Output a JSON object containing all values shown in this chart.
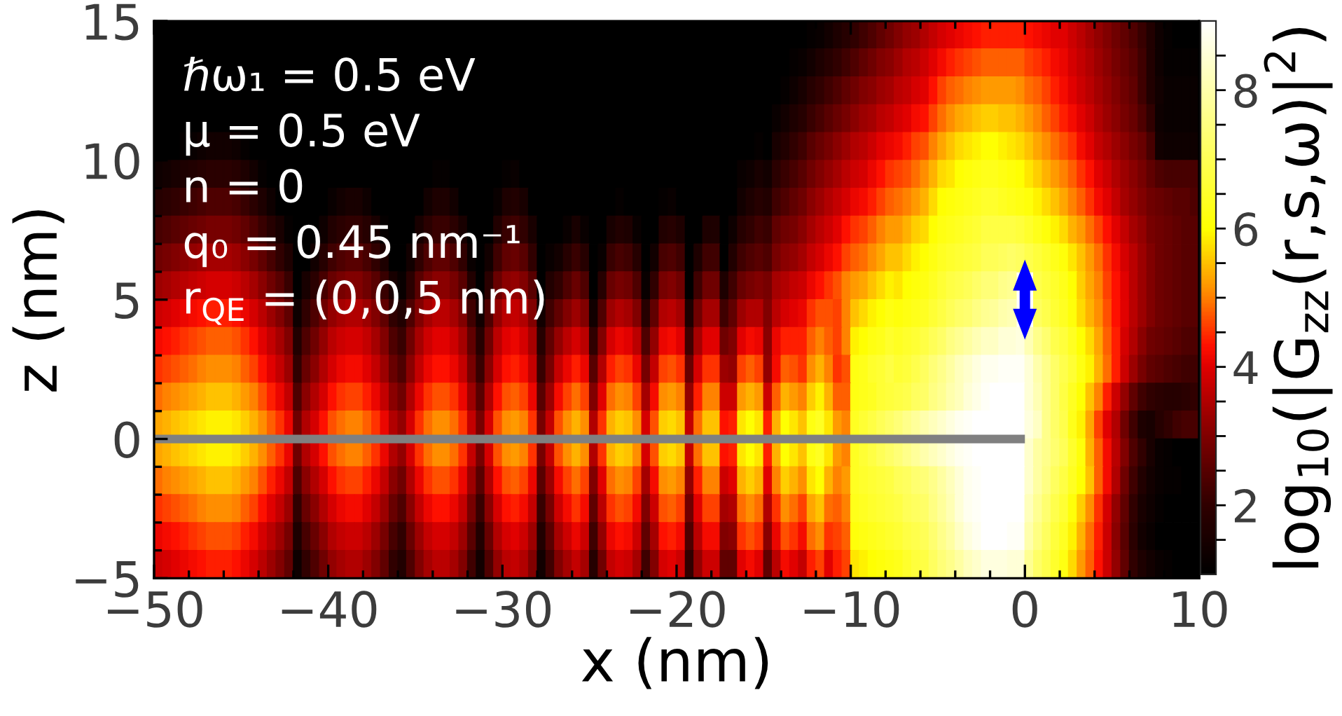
{
  "chart_data": {
    "type": "heatmap",
    "xlabel": "x (nm)",
    "ylabel": "z (nm)",
    "clabel": "log$_{10}$(|G$_{zz}$(r,s,ω)|$^{2}$)",
    "annotations": [
      "ℏω₁ = 0.5 eV",
      "μ = 0.5 eV",
      "n = 0",
      "q₀ = 0.45 nm⁻¹",
      "r$_{QE}$ = (0,0,5 nm)"
    ],
    "xlim": [
      -50,
      10
    ],
    "ylim": [
      -5,
      15
    ],
    "xticks": [
      {
        "value": -50,
        "label": "−50"
      },
      {
        "value": -48,
        "label": null
      },
      {
        "value": -46,
        "label": null
      },
      {
        "value": -44,
        "label": null
      },
      {
        "value": -42,
        "label": null
      },
      {
        "value": -40,
        "label": "−40"
      },
      {
        "value": -38,
        "label": null
      },
      {
        "value": -36,
        "label": null
      },
      {
        "value": -34,
        "label": null
      },
      {
        "value": -32,
        "label": null
      },
      {
        "value": -30,
        "label": "−30"
      },
      {
        "value": -28,
        "label": null
      },
      {
        "value": -26,
        "label": null
      },
      {
        "value": -24,
        "label": null
      },
      {
        "value": -22,
        "label": null
      },
      {
        "value": -20,
        "label": "−20"
      },
      {
        "value": -18,
        "label": null
      },
      {
        "value": -16,
        "label": null
      },
      {
        "value": -14,
        "label": null
      },
      {
        "value": -12,
        "label": null
      },
      {
        "value": -10,
        "label": "−10"
      },
      {
        "value": -8,
        "label": null
      },
      {
        "value": -6,
        "label": null
      },
      {
        "value": -4,
        "label": null
      },
      {
        "value": -2,
        "label": null
      },
      0,
      {
        "value": 2,
        "label": null
      },
      {
        "value": 4,
        "label": null
      },
      {
        "value": 6,
        "label": null
      },
      {
        "value": 8,
        "label": null
      },
      10
    ],
    "yticks": [
      {
        "value": -5,
        "label": "−5"
      },
      {
        "value": -4,
        "label": null
      },
      {
        "value": -3,
        "label": null
      },
      {
        "value": -2,
        "label": null
      },
      {
        "value": -1,
        "label": null
      },
      0,
      {
        "value": 1,
        "label": null
      },
      {
        "value": 2,
        "label": null
      },
      {
        "value": 3,
        "label": null
      },
      {
        "value": 4,
        "label": null
      },
      5,
      {
        "value": 6,
        "label": null
      },
      {
        "value": 7,
        "label": null
      },
      {
        "value": 8,
        "label": null
      },
      {
        "value": 9,
        "label": null
      },
      10,
      {
        "value": 11,
        "label": null
      },
      {
        "value": 12,
        "label": null
      },
      {
        "value": 13,
        "label": null
      },
      {
        "value": 14,
        "label": null
      },
      15
    ],
    "clim": [
      1,
      9
    ],
    "cticks": [
      {
        "value": 1.5,
        "label": null
      },
      2,
      {
        "value": 2.5,
        "label": null
      },
      {
        "value": 3,
        "label": null
      },
      {
        "value": 3.5,
        "label": null
      },
      4,
      {
        "value": 4.5,
        "label": null
      },
      {
        "value": 5,
        "label": null
      },
      {
        "value": 5.5,
        "label": null
      },
      6,
      {
        "value": 6.5,
        "label": null
      },
      {
        "value": 7,
        "label": null
      },
      {
        "value": 7.5,
        "label": null
      },
      8,
      {
        "value": 8.5,
        "label": null
      }
    ],
    "series": [
      {
        "type": "line",
        "x": [
          -50,
          0
        ],
        "values": [
          0,
          0
        ],
        "color": "#808080"
      }
    ],
    "cells": [
      [
        1,
        1,
        1,
        1,
        1,
        1,
        1,
        1,
        1,
        1,
        1,
        1,
        1,
        1,
        1,
        1,
        1,
        1,
        1,
        1,
        1,
        1,
        1,
        1,
        1,
        1,
        1,
        1,
        1,
        1,
        1,
        1,
        1,
        1,
        1,
        1,
        1,
        1,
        1,
        1,
        1,
        1,
        1,
        1,
        1,
        1,
        1,
        1,
        1,
        1,
        1,
        1,
        1,
        1,
        1,
        1,
        1,
        1,
        1,
        1,
        1,
        1,
        1,
        1,
        1,
        1,
        1,
        1,
        1,
        1,
        1,
        1,
        1,
        1,
        1,
        1.1,
        1.2,
        1.4,
        1.6,
        1.8,
        2.0,
        2.2,
        2.4,
        2.6,
        2.8,
        3.0,
        3.2,
        3.3,
        3.5,
        3.7,
        3.9,
        4.0,
        4.1,
        4.2,
        4.3,
        4.4,
        4.4,
        4.4,
        4.4,
        4.4,
        4.3,
        4.2,
        4.1,
        4.0,
        4.0,
        3.8,
        3.6,
        3.4,
        3.2,
        3.0,
        2.8,
        2.6,
        2.4,
        2.1,
        1.7,
        1.3,
        1.1,
        1,
        1,
        1
      ],
      [
        1,
        1,
        1,
        1,
        1,
        1,
        1,
        1,
        1,
        1,
        1,
        1,
        1,
        1,
        1,
        1,
        1,
        1,
        1,
        1,
        1,
        1,
        1,
        1,
        1,
        1,
        1,
        1,
        1,
        1,
        1,
        1,
        1,
        1,
        1,
        1,
        1,
        1,
        1,
        1,
        1,
        1,
        1,
        1,
        1,
        1,
        1,
        1,
        1,
        1,
        1,
        1,
        1,
        1,
        1,
        1,
        1,
        1,
        1,
        1,
        1,
        1,
        1,
        1,
        1,
        1,
        1,
        1,
        1,
        1,
        1,
        1,
        1,
        1.1,
        1.2,
        1.4,
        1.6,
        1.8,
        2.0,
        2.2,
        2.4,
        2.6,
        2.8,
        3.0,
        3.1,
        3.3,
        3.5,
        3.6,
        3.8,
        4.0,
        4.2,
        4.4,
        4.5,
        4.6,
        4.7,
        4.8,
        4.8,
        4.8,
        4.8,
        4.8,
        4.6,
        4.5,
        4.4,
        4.2,
        4.1,
        3.9,
        3.7,
        3.5,
        3.3,
        3.1,
        2.9,
        2.7,
        2.5,
        2.2,
        1.7,
        1.3,
        1.1,
        1.1,
        1.1,
        1.1
      ],
      [
        1,
        1,
        1,
        1,
        1,
        1,
        1,
        1,
        1,
        1,
        1,
        1,
        1,
        1,
        1,
        1,
        1,
        1,
        1,
        1,
        1,
        1,
        1,
        1,
        1,
        1,
        1,
        1,
        1,
        1,
        1,
        1,
        1,
        1,
        1,
        1,
        1,
        1,
        1,
        1,
        1,
        1,
        1,
        1,
        1,
        1,
        1,
        1,
        1,
        1,
        1,
        1,
        1,
        1,
        1,
        1,
        1,
        1,
        1,
        1,
        1,
        1,
        1,
        1,
        1,
        1,
        1,
        1,
        1,
        1,
        1,
        1,
        1.1,
        1.3,
        1.5,
        1.8,
        2.0,
        2.2,
        2.4,
        2.6,
        2.8,
        3.0,
        3.1,
        3.3,
        3.4,
        3.6,
        3.7,
        3.9,
        4.0,
        4.3,
        4.6,
        4.8,
        4.9,
        5.0,
        5.1,
        5.2,
        5.2,
        5.2,
        5.2,
        5.1,
        4.9,
        4.8,
        4.6,
        4.4,
        4.2,
        4.0,
        3.8,
        3.6,
        3.4,
        3.2,
        3.0,
        2.8,
        2.6,
        2.2,
        1.7,
        1.4,
        1.2,
        1.2,
        1.2,
        1.2
      ],
      [
        1,
        1,
        1,
        1,
        1,
        1,
        1,
        1,
        1,
        1,
        1,
        1,
        1,
        1,
        1,
        1,
        1,
        1,
        1,
        1,
        1,
        1,
        1,
        1,
        1,
        1,
        1,
        1,
        1,
        1,
        1,
        1,
        1,
        1,
        1,
        1,
        1,
        1,
        1,
        1,
        1,
        1,
        1,
        1,
        1,
        1,
        1,
        1,
        1,
        1,
        1,
        1,
        1,
        1,
        1,
        1,
        1,
        1,
        1,
        1,
        1,
        1,
        1,
        1,
        1,
        1,
        1,
        1,
        1,
        1,
        1,
        1.2,
        1.4,
        1.6,
        1.8,
        2.1,
        2.3,
        2.5,
        2.7,
        2.9,
        3.1,
        3.3,
        3.4,
        3.6,
        3.7,
        3.9,
        4.0,
        4.2,
        4.3,
        4.6,
        4.9,
        5.1,
        5.3,
        5.4,
        5.5,
        5.6,
        5.6,
        5.5,
        5.5,
        5.4,
        5.2,
        5.0,
        4.8,
        4.6,
        4.4,
        4.2,
        4.0,
        3.8,
        3.5,
        3.3,
        3.1,
        2.9,
        2.7,
        2.4,
        2.0,
        1.3,
        1.2,
        1.2,
        1.2,
        1.2
      ],
      [
        1,
        1,
        1,
        1.1,
        1.2,
        1.3,
        1.4,
        1.4,
        1.4,
        1.3,
        1.1,
        1,
        1,
        1,
        1,
        1,
        1,
        1,
        1,
        1,
        1,
        1,
        1,
        1,
        1,
        1,
        1,
        1,
        1,
        1,
        1,
        1,
        1,
        1,
        1,
        1,
        1,
        1,
        1,
        1,
        1,
        1,
        1,
        1,
        1,
        1,
        1,
        1,
        1,
        1,
        1,
        1,
        1,
        1,
        1,
        1,
        1,
        1,
        1,
        1,
        1,
        1,
        1,
        1,
        1,
        1,
        1,
        1,
        1,
        1.1,
        1,
        1.5,
        1.7,
        2.0,
        2.2,
        2.5,
        2.7,
        2.9,
        3.1,
        3.3,
        3.5,
        3.6,
        3.8,
        4.0,
        4.1,
        4.2,
        4.4,
        4.6,
        4.7,
        5.0,
        5.3,
        5.5,
        5.7,
        5.8,
        5.9,
        6.0,
        6.0,
        5.9,
        5.8,
        5.7,
        5.5,
        5.3,
        5.1,
        4.9,
        4.7,
        4.5,
        4.2,
        4.0,
        3.7,
        3.5,
        3.3,
        3.1,
        2.9,
        2.7,
        2.3,
        1.4,
        1.3,
        1.3,
        1.3,
        1.3
      ],
      [
        1.3,
        1.4,
        1.5,
        1.6,
        1.7,
        1.8,
        1.9,
        1.9,
        1.9,
        1.8,
        1.6,
        1.4,
        1.1,
        1,
        1,
        1,
        1,
        1,
        1,
        1,
        1,
        1,
        1,
        1,
        1,
        1,
        1,
        1,
        1,
        1,
        1,
        1,
        1.1,
        1.1,
        1,
        1,
        1,
        1,
        1,
        1,
        1.1,
        1.2,
        1,
        1,
        1,
        1,
        1,
        1,
        1,
        1,
        1,
        1,
        1,
        1,
        1,
        1,
        1,
        1,
        1,
        1,
        1,
        1,
        1,
        1,
        1,
        1,
        1,
        1.2,
        1.3,
        1.5,
        1.4,
        1.9,
        2.1,
        2.3,
        2.5,
        2.8,
        3.0,
        3.2,
        3.4,
        3.6,
        3.8,
        3.9,
        4.1,
        4.3,
        4.5,
        4.6,
        4.7,
        4.9,
        5.1,
        5.4,
        5.7,
        5.8,
        6.0,
        6.1,
        6.2,
        6.3,
        6.3,
        6.2,
        6.1,
        6.0,
        5.8,
        5.6,
        5.4,
        5.2,
        5.0,
        4.8,
        4.5,
        4.3,
        4.0,
        3.8,
        3.5,
        3.3,
        3.1,
        2.9,
        2.6,
        2.4,
        2.3,
        2.3,
        2.3,
        2.3
      ],
      [
        1.8,
        1.9,
        2.0,
        2.1,
        2.2,
        2.3,
        2.4,
        2.4,
        2.4,
        2.3,
        2.1,
        1.9,
        1.6,
        1.3,
        1,
        1,
        1,
        1,
        1,
        1,
        1.2,
        1.4,
        1.5,
        1.5,
        1.3,
        1,
        1,
        1,
        1,
        1,
        1,
        1.4,
        1.6,
        1.6,
        1.4,
        1,
        1,
        1,
        1,
        1.2,
        1.6,
        1.7,
        1.5,
        1,
        1,
        1,
        1,
        1,
        1,
        1,
        1,
        1,
        1,
        1.1,
        1,
        1,
        1,
        1,
        1.1,
        1.2,
        1,
        1,
        1,
        1,
        1,
        1,
        1,
        1.4,
        1.6,
        1.8,
        1.7,
        2.2,
        2.4,
        2.6,
        2.8,
        3.1,
        3.3,
        3.5,
        3.7,
        3.9,
        4.1,
        4.2,
        4.4,
        4.6,
        4.8,
        4.9,
        5.0,
        5.2,
        5.4,
        5.7,
        6.0,
        6.1,
        6.2,
        6.3,
        6.4,
        6.5,
        6.5,
        6.4,
        6.3,
        6.2,
        6.1,
        5.9,
        5.7,
        5.5,
        5.3,
        5.0,
        4.8,
        4.5,
        4.2,
        4.0,
        3.7,
        3.4,
        3.2,
        3.0,
        2.8,
        2.7,
        2.6,
        2.5,
        2.5,
        2.4
      ],
      [
        2.3,
        2.4,
        2.5,
        2.6,
        2.7,
        2.8,
        2.9,
        2.9,
        2.9,
        2.8,
        2.6,
        2.4,
        2.1,
        1.8,
        1.5,
        1.1,
        1,
        1,
        1,
        1.3,
        1.7,
        1.9,
        2.0,
        2.0,
        1.8,
        1.5,
        1.1,
        1,
        1,
        1,
        1.5,
        1.9,
        2.1,
        2.1,
        1.9,
        1.5,
        1,
        1,
        1,
        1.7,
        2.1,
        2.2,
        2.0,
        1.5,
        1,
        1,
        1,
        1.2,
        1.5,
        1.2,
        1,
        1,
        1.5,
        1.7,
        1.6,
        1.2,
        1,
        1,
        1.7,
        1.8,
        1.6,
        1,
        1,
        1.6,
        1.6,
        1,
        1.3,
        1.8,
        2.0,
        2.2,
        2.1,
        2.6,
        2.8,
        2.9,
        3.1,
        3.4,
        3.6,
        3.8,
        4.0,
        4.3,
        4.5,
        4.6,
        4.8,
        5.0,
        5.2,
        5.2,
        5.4,
        5.6,
        5.7,
        6.0,
        6.2,
        6.3,
        6.4,
        6.5,
        6.6,
        6.8,
        6.8,
        6.8,
        6.8,
        6.7,
        6.5,
        6.3,
        6.1,
        5.9,
        5.7,
        5.4,
        5.2,
        4.9,
        4.6,
        4.3,
        4.0,
        3.7,
        3.4,
        3.2,
        2.9,
        2.8,
        2.7,
        2.6,
        2.5,
        2.5
      ],
      [
        2.8,
        2.9,
        3.0,
        3.1,
        3.2,
        3.3,
        3.4,
        3.4,
        3.4,
        3.3,
        3.1,
        2.9,
        2.6,
        2.3,
        2.0,
        1.6,
        1,
        1,
        1.4,
        1.8,
        2.2,
        2.4,
        2.5,
        2.5,
        2.3,
        2.0,
        1.6,
        1,
        1,
        1.4,
        2.0,
        2.4,
        2.6,
        2.6,
        2.4,
        2.0,
        1.2,
        1,
        1.4,
        2.2,
        2.6,
        2.7,
        2.5,
        2.0,
        1,
        1.2,
        1.4,
        1.8,
        2.1,
        1.8,
        1,
        1.2,
        2.1,
        2.3,
        2.2,
        1.8,
        1,
        1.4,
        2.3,
        2.4,
        2.2,
        1,
        1.6,
        2.2,
        2.2,
        1,
        1.7,
        2.2,
        2.4,
        2.5,
        2.4,
        2.9,
        3.1,
        3.2,
        3.4,
        3.7,
        3.9,
        4.1,
        4.3,
        4.6,
        4.8,
        4.9,
        5.1,
        5.3,
        5.5,
        5.5,
        5.7,
        5.9,
        6.0,
        6.2,
        6.4,
        6.5,
        6.6,
        6.7,
        6.8,
        7.0,
        7.0,
        7.1,
        7.2,
        7.1,
        6.9,
        6.7,
        6.5,
        6.3,
        6.1,
        5.8,
        5.5,
        5.2,
        4.9,
        4.5,
        4.2,
        3.9,
        3.6,
        3.3,
        3.0,
        2.8,
        2.7,
        2.6,
        2.5,
        2.5
      ],
      [
        3.3,
        3.4,
        3.5,
        3.6,
        3.7,
        3.8,
        3.9,
        3.9,
        3.9,
        3.8,
        3.6,
        3.4,
        3.1,
        2.8,
        2.5,
        2.1,
        1,
        1.5,
        1.9,
        2.3,
        2.7,
        2.9,
        3.0,
        3.0,
        2.8,
        2.5,
        2.1,
        1.5,
        1.2,
        1.9,
        2.5,
        2.9,
        3.1,
        3.1,
        2.9,
        2.5,
        1.7,
        1,
        1.9,
        2.7,
        3.1,
        3.2,
        3.0,
        2.5,
        1,
        1.7,
        2.0,
        2.4,
        2.7,
        2.4,
        1,
        1.8,
        2.7,
        2.9,
        2.8,
        2.4,
        1.2,
        2.0,
        2.9,
        3.0,
        2.8,
        1,
        2.2,
        2.8,
        2.8,
        1.6,
        2.2,
        2.7,
        2.9,
        3.0,
        2.9,
        3.4,
        3.5,
        3.7,
        3.8,
        4.1,
        4.3,
        4.5,
        4.7,
        5.0,
        5.2,
        5.3,
        5.5,
        5.7,
        5.9,
        5.8,
        6.0,
        6.1,
        6.2,
        6.4,
        6.6,
        6.8,
        6.9,
        7.0,
        7.2,
        7.4,
        7.4,
        7.6,
        7.7,
        null,
        null,
        6.9,
        6.7,
        6.5,
        6.3,
        6.0,
        5.6,
        5.3,
        5.0,
        4.6,
        4.3,
        4.0,
        3.6,
        3.3,
        3.0,
        2.8,
        2.7,
        2.6,
        2.5,
        2.5
      ],
      [
        3.8,
        3.9,
        4.0,
        4.1,
        4.2,
        4.3,
        4.4,
        4.4,
        4.4,
        4.3,
        4.1,
        3.9,
        3.6,
        3.3,
        3.0,
        2.6,
        1.3,
        2.0,
        2.4,
        2.8,
        3.2,
        3.4,
        3.5,
        3.5,
        3.3,
        3.0,
        2.6,
        2.0,
        1.7,
        2.4,
        3.0,
        3.4,
        3.6,
        3.6,
        3.4,
        3.0,
        2.2,
        1.4,
        2.4,
        3.2,
        3.6,
        3.7,
        3.5,
        3.0,
        1.4,
        2.2,
        2.6,
        3.0,
        3.3,
        3.0,
        1.4,
        2.4,
        3.3,
        3.5,
        3.4,
        3.0,
        1.8,
        2.6,
        3.5,
        3.6,
        3.4,
        1.6,
        2.8,
        3.4,
        3.4,
        2.2,
        2.6,
        3.3,
        3.5,
        3.5,
        3.0,
        3.6,
        3.9,
        4.0,
        4.1,
        4.5,
        4.7,
        4.7,
        4.6,
        5.0,
        5.5,
        5.7,
        5.9,
        6.0,
        6.2,
        6.1,
        6.2,
        6.3,
        6.4,
        6.6,
        6.8,
        7.0,
        7.2,
        7.3,
        7.5,
        7.7,
        7.8,
        8.0,
        8.1,
        null,
        null,
        7.1,
        6.9,
        6.6,
        6.4,
        6.1,
        5.7,
        5.4,
        5.1,
        4.7,
        4.3,
        4.0,
        3.6,
        3.3,
        3.0,
        2.8,
        2.7,
        2.6,
        2.5,
        2.5
      ],
      [
        4.2,
        4.3,
        4.4,
        4.5,
        4.6,
        4.7,
        4.8,
        4.8,
        4.8,
        4.7,
        4.5,
        4.3,
        4.0,
        3.7,
        3.4,
        3.0,
        1.7,
        2.4,
        2.8,
        3.2,
        3.6,
        3.8,
        3.9,
        3.9,
        3.7,
        3.4,
        3.0,
        2.4,
        2.1,
        2.8,
        3.4,
        3.8,
        4.0,
        4.0,
        3.8,
        3.4,
        2.6,
        1.8,
        2.8,
        3.6,
        4.0,
        4.1,
        3.9,
        3.4,
        1.8,
        2.6,
        3.2,
        3.6,
        3.9,
        3.6,
        2.0,
        3.0,
        3.9,
        4.1,
        4.0,
        3.6,
        2.4,
        3.2,
        4.1,
        4.2,
        4.0,
        2.2,
        3.4,
        4.0,
        4.0,
        2.8,
        3.0,
        4.0,
        4.2,
        4.1,
        3.1,
        4.1,
        4.4,
        4.4,
        4.4,
        4.8,
        5.0,
        4.8,
        4.6,
        5.0,
        5.9,
        6.0,
        6.2,
        6.3,
        6.5,
        6.4,
        6.5,
        6.6,
        6.8,
        7.0,
        7.2,
        7.5,
        7.7,
        7.9,
        8.1,
        8.3,
        8.3,
        8.5,
        8.5,
        8.6,
        8.1,
        7.6,
        7.3,
        6.9,
        6.7,
        6.4,
        6.0,
        5.7,
        5.3,
        4.8,
        4.4,
        3.9,
        3.5,
        3.1,
        2.8,
        2.7,
        2.6,
        2.5,
        2.4,
        2.4
      ],
      [
        4.5,
        4.6,
        4.7,
        4.8,
        4.9,
        5.0,
        5.1,
        5.1,
        5.1,
        5.0,
        4.8,
        4.6,
        4.3,
        4.0,
        3.7,
        3.3,
        2.0,
        2.7,
        3.1,
        3.5,
        3.9,
        4.1,
        4.2,
        4.2,
        4.0,
        3.7,
        3.3,
        2.7,
        2.4,
        3.1,
        3.7,
        4.1,
        4.3,
        4.3,
        4.1,
        3.7,
        2.9,
        2.1,
        3.1,
        3.9,
        4.3,
        4.4,
        4.2,
        3.7,
        2.1,
        2.9,
        3.7,
        4.1,
        4.4,
        4.1,
        2.5,
        3.5,
        4.4,
        4.6,
        4.5,
        4.1,
        2.9,
        3.7,
        4.6,
        4.7,
        4.5,
        2.7,
        3.9,
        4.5,
        4.5,
        3.3,
        3.2,
        4.6,
        4.8,
        4.6,
        3.2,
        4.2,
        4.8,
        4.7,
        4.5,
        5.1,
        5.4,
        5.0,
        4.5,
        4.7,
        6.2,
        6.3,
        6.5,
        6.6,
        6.8,
        6.6,
        6.7,
        6.9,
        7.1,
        7.4,
        7.6,
        7.9,
        8.2,
        8.4,
        8.6,
        8.8,
        8.8,
        8.9,
        8.9,
        8.9,
        8.5,
        8.0,
        7.6,
        7.2,
        6.9,
        6.6,
        6.2,
        5.9,
        5.4,
        4.9,
        4.4,
        3.8,
        3.3,
        2.9,
        2.6,
        2.5,
        2.4,
        2.3,
        2.2,
        2.2
      ],
      [
        4.9,
        5.0,
        5.1,
        5.2,
        5.3,
        5.4,
        5.5,
        5.5,
        5.5,
        5.4,
        5.2,
        5.0,
        4.7,
        4.4,
        4.1,
        3.7,
        2.4,
        3.1,
        3.5,
        3.9,
        4.3,
        4.5,
        4.6,
        4.6,
        4.4,
        4.1,
        3.7,
        3.1,
        2.8,
        3.5,
        4.1,
        4.5,
        4.7,
        4.7,
        4.5,
        4.1,
        3.3,
        2.5,
        3.5,
        4.3,
        4.7,
        4.8,
        4.6,
        4.1,
        2.5,
        3.3,
        4.2,
        4.6,
        4.9,
        4.6,
        3.0,
        4.0,
        4.9,
        5.1,
        5.0,
        4.6,
        3.4,
        4.2,
        5.1,
        5.2,
        5.0,
        3.2,
        4.4,
        5.0,
        5.0,
        3.8,
        3.8,
        5.2,
        5.4,
        5.2,
        3.8,
        4.8,
        5.4,
        5.2,
        5.0,
        5.6,
        5.9,
        5.4,
        4.8,
        4.8,
        6.2,
        6.3,
        6.4,
        6.6,
        6.7,
        6.8,
        6.9,
        7.1,
        7.2,
        7.5,
        7.7,
        8.0,
        8.2,
        8.5,
        8.7,
        8.9,
        9.0,
        9.0,
        9.0,
        9.0,
        8.5,
        8.1,
        7.6,
        7.2,
        6.8,
        6.4,
        6.0,
        5.5,
        5.0,
        4.4,
        3.8,
        3.2,
        2.6,
        2.2,
        2.0,
        1.9,
        1.8,
        1.8,
        1.9,
        2.0
      ],
      [
        5.3,
        5.4,
        5.5,
        5.6,
        5.7,
        5.8,
        5.9,
        5.9,
        5.9,
        5.8,
        5.6,
        5.4,
        5.1,
        4.8,
        4.5,
        4.1,
        2.8,
        3.5,
        3.9,
        4.3,
        4.7,
        4.9,
        5.0,
        5.0,
        4.8,
        4.5,
        4.1,
        3.5,
        3.2,
        3.9,
        4.5,
        4.9,
        5.1,
        5.1,
        4.9,
        4.5,
        3.7,
        2.9,
        3.9,
        4.7,
        5.1,
        5.2,
        5.0,
        4.5,
        2.9,
        3.7,
        4.7,
        5.1,
        5.4,
        5.1,
        3.5,
        4.5,
        5.4,
        5.6,
        5.5,
        5.1,
        3.9,
        4.7,
        5.6,
        5.7,
        5.5,
        3.7,
        4.9,
        5.5,
        5.5,
        4.3,
        4.4,
        5.8,
        6.0,
        5.8,
        4.4,
        5.4,
        6.0,
        5.8,
        5.5,
        6.2,
        6.4,
        5.8,
        5.2,
        5.0,
        6.4,
        6.6,
        6.8,
        7.0,
        7.2,
        7.4,
        7.6,
        7.8,
        8.0,
        8.2,
        8.4,
        8.6,
        8.8,
        8.9,
        9.0,
        9.0,
        9.0,
        9.0,
        9.0,
        9.0,
        8.6,
        8.3,
        7.6,
        7.2,
        6.9,
        6.3,
        5.9,
        5.3,
        4.6,
        4.0,
        3.5,
        2.8,
        2.2,
        1.6,
        1.5,
        1.8,
        2.0,
        2.2,
        2.3,
        2.3
      ],
      [
        5.3,
        5.4,
        5.5,
        5.6,
        5.7,
        5.8,
        5.9,
        5.9,
        5.9,
        5.8,
        5.6,
        5.4,
        5.1,
        4.8,
        4.5,
        4.1,
        2.8,
        3.5,
        3.9,
        4.3,
        4.7,
        4.9,
        5.0,
        5.0,
        4.8,
        4.5,
        4.1,
        3.5,
        3.2,
        3.9,
        4.5,
        4.9,
        5.1,
        5.1,
        4.9,
        4.5,
        3.7,
        2.9,
        3.9,
        4.7,
        5.1,
        5.2,
        5.0,
        4.5,
        2.9,
        3.7,
        4.7,
        5.1,
        5.4,
        5.1,
        3.5,
        4.5,
        5.4,
        5.6,
        5.5,
        5.1,
        3.9,
        4.7,
        5.6,
        5.7,
        5.5,
        3.7,
        4.9,
        5.5,
        5.5,
        4.3,
        4.4,
        5.8,
        6.0,
        5.8,
        4.4,
        5.4,
        6.0,
        5.8,
        5.5,
        6.2,
        6.4,
        5.8,
        5.2,
        5.0,
        6.4,
        6.6,
        6.8,
        7.0,
        7.2,
        7.4,
        7.6,
        7.8,
        8.0,
        8.2,
        8.4,
        8.6,
        8.8,
        8.9,
        9.0,
        9.0,
        9.0,
        9.0,
        9.0,
        9.0,
        8.4,
        7.9,
        7.6,
        7.3,
        7.0,
        6.5,
        6.1,
        5.4,
        4.8,
        4.2,
        3.6,
        3.0,
        2.4,
        2.0,
        1.5,
        1.2,
        1.1,
        1.0,
        1.0,
        1.0
      ],
      [
        4.9,
        5.0,
        5.1,
        5.2,
        5.3,
        5.4,
        5.5,
        5.5,
        5.5,
        5.4,
        5.2,
        5.0,
        4.7,
        4.4,
        4.1,
        3.7,
        2.4,
        3.1,
        3.5,
        3.9,
        4.3,
        4.5,
        4.6,
        4.6,
        4.4,
        4.1,
        3.7,
        3.1,
        2.8,
        3.5,
        4.1,
        4.5,
        4.7,
        4.7,
        4.5,
        4.1,
        3.3,
        2.5,
        3.5,
        4.3,
        4.7,
        4.8,
        4.6,
        4.1,
        2.5,
        3.3,
        4.2,
        4.6,
        4.9,
        4.6,
        3.0,
        4.0,
        4.9,
        5.1,
        5.0,
        4.6,
        3.4,
        4.2,
        5.1,
        5.2,
        5.0,
        3.2,
        4.4,
        5.0,
        5.0,
        3.8,
        4.0,
        5.4,
        5.6,
        5.4,
        4.0,
        5.0,
        5.6,
        5.4,
        5.1,
        5.8,
        6.0,
        5.4,
        5.0,
        5.2,
        6.4,
        6.5,
        6.6,
        6.7,
        6.8,
        7.0,
        7.1,
        7.3,
        7.4,
        7.6,
        7.9,
        8.2,
        8.5,
        8.8,
        8.9,
        9.0,
        9.0,
        9.0,
        9.0,
        9.0,
        8.4,
        7.9,
        7.5,
        7.1,
        6.8,
        6.4,
        6.0,
        5.5,
        4.8,
        4.2,
        3.5,
        2.8,
        2.2,
        1.7,
        1.4,
        1.2,
        1.1,
        1.1,
        1.0,
        1.0
      ],
      [
        4.5,
        4.6,
        4.7,
        4.8,
        4.9,
        5.0,
        5.1,
        5.1,
        5.1,
        5.0,
        4.8,
        4.6,
        4.3,
        4.0,
        3.7,
        3.3,
        2.0,
        2.7,
        3.1,
        3.5,
        3.9,
        4.1,
        4.2,
        4.2,
        4.0,
        3.7,
        3.3,
        2.7,
        2.4,
        3.1,
        3.7,
        4.1,
        4.3,
        4.3,
        4.1,
        3.7,
        2.9,
        2.1,
        3.1,
        3.9,
        4.3,
        4.4,
        4.2,
        3.7,
        2.1,
        2.9,
        3.8,
        4.2,
        4.5,
        4.2,
        2.6,
        3.6,
        4.5,
        4.7,
        4.6,
        4.2,
        3.0,
        3.8,
        4.7,
        4.8,
        4.6,
        2.8,
        4.0,
        4.6,
        4.6,
        3.4,
        3.5,
        4.9,
        5.1,
        4.9,
        3.5,
        4.5,
        5.1,
        4.9,
        4.6,
        5.3,
        5.5,
        4.9,
        4.8,
        5.0,
        6.3,
        6.4,
        6.5,
        6.6,
        6.7,
        6.8,
        7.0,
        7.1,
        7.2,
        7.5,
        7.8,
        8.1,
        8.5,
        8.8,
        8.9,
        9.0,
        9.0,
        9.0,
        9.0,
        9.0,
        8.2,
        7.7,
        7.3,
        6.9,
        6.6,
        6.1,
        5.6,
        5.1,
        4.5,
        3.9,
        3.2,
        2.6,
        2.0,
        1.5,
        1.3,
        1.1,
        1.0,
        1.0,
        1.0,
        1.0
      ],
      [
        4.1,
        4.2,
        4.3,
        4.4,
        4.5,
        4.6,
        4.7,
        4.7,
        4.7,
        4.6,
        4.4,
        4.2,
        3.9,
        3.6,
        3.3,
        2.9,
        1.6,
        2.3,
        2.7,
        3.1,
        3.5,
        3.7,
        3.8,
        3.8,
        3.6,
        3.3,
        2.9,
        2.3,
        2.0,
        2.7,
        3.3,
        3.7,
        3.9,
        3.9,
        3.7,
        3.3,
        2.5,
        1.7,
        2.7,
        3.5,
        3.9,
        4.0,
        3.8,
        3.3,
        1.7,
        2.5,
        3.4,
        3.8,
        4.1,
        3.8,
        2.2,
        3.2,
        4.1,
        4.3,
        4.2,
        3.8,
        2.6,
        3.4,
        4.3,
        4.4,
        4.2,
        2.4,
        3.6,
        4.2,
        4.2,
        3.0,
        3.1,
        4.5,
        4.7,
        4.5,
        3.1,
        4.1,
        4.7,
        4.5,
        4.2,
        4.9,
        5.1,
        4.5,
        4.6,
        4.8,
        6.1,
        6.2,
        6.3,
        6.4,
        6.5,
        6.6,
        6.8,
        6.9,
        7.0,
        7.3,
        7.6,
        7.9,
        8.3,
        8.6,
        8.8,
        9.0,
        9.0,
        9.0,
        8.9,
        8.9,
        8.0,
        7.5,
        7.1,
        6.7,
        6.4,
        5.9,
        5.4,
        4.9,
        4.4,
        3.8,
        3.1,
        2.5,
        1.9,
        1.4,
        1.2,
        1.0,
        1.0,
        1.0,
        1.0,
        1.0
      ],
      [
        3.8,
        3.9,
        4.0,
        4.1,
        4.2,
        4.3,
        4.4,
        4.4,
        4.4,
        4.3,
        4.1,
        3.9,
        3.6,
        3.3,
        3.0,
        2.6,
        1.3,
        2.0,
        2.4,
        2.8,
        3.2,
        3.4,
        3.5,
        3.5,
        3.3,
        3.0,
        2.6,
        2.0,
        1.7,
        2.4,
        3.0,
        3.4,
        3.6,
        3.6,
        3.4,
        3.0,
        2.2,
        1.4,
        2.4,
        3.2,
        3.6,
        3.7,
        3.5,
        3.0,
        1.4,
        2.2,
        3.0,
        3.4,
        3.7,
        3.4,
        1.8,
        2.8,
        3.7,
        3.9,
        3.8,
        3.4,
        2.2,
        3.0,
        3.9,
        4.0,
        3.8,
        2.0,
        3.2,
        3.8,
        3.8,
        2.6,
        2.6,
        4.0,
        4.2,
        4.0,
        2.6,
        3.6,
        4.2,
        4.0,
        3.7,
        4.4,
        4.6,
        4.0,
        4.4,
        4.6,
        5.8,
        5.9,
        6.0,
        6.1,
        6.2,
        6.3,
        6.5,
        6.7,
        6.8,
        7.1,
        7.4,
        7.6,
        7.9,
        8.2,
        8.4,
        8.6,
        8.6,
        8.6,
        8.5,
        8.5,
        7.7,
        7.2,
        6.9,
        6.5,
        6.2,
        5.7,
        5.2,
        4.8,
        4.3,
        3.8,
        3.2,
        2.6,
        2.0,
        1.6,
        1.4,
        1.2,
        1.1,
        1.0,
        1.0,
        1.0
      ]
    ]
  }
}
